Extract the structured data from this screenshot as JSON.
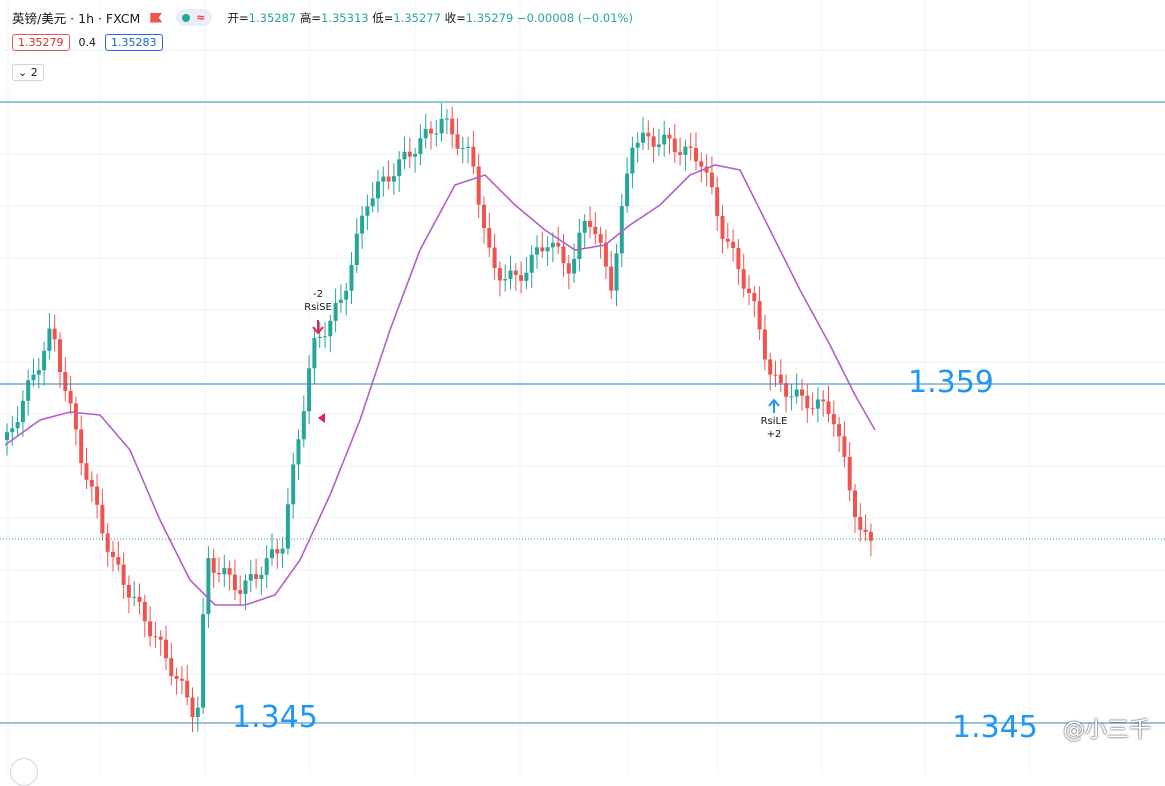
{
  "header": {
    "symbol": "英镑/美元 · 1h · FXCM",
    "wave_label": "≈",
    "open_label": "开=",
    "open": "1.35287",
    "high_label": "高=",
    "high": "1.35313",
    "low_label": "低=",
    "low": "1.35277",
    "close_label": "收=",
    "close": "1.35279",
    "change": "−0.00008 (−0.01%)"
  },
  "trade": {
    "sell": "1.35279",
    "spread": "0.4",
    "buy": "1.35283"
  },
  "indicators_toggle": {
    "count": "2"
  },
  "levels": {
    "top_label": "",
    "mid_label": "1.359",
    "bottom_label_left": "1.345",
    "bottom_label_right": "1.345"
  },
  "signals": {
    "short_qty": "-2",
    "short_name": "RsiSE",
    "long_name": "RsiLE",
    "long_qty": "+2"
  },
  "watermark": "@小三千",
  "colors": {
    "up": "#26a69a",
    "down": "#ef5350",
    "ma": "#b060c8",
    "level": "#2e86c1",
    "label": "#2196f3"
  }
}
